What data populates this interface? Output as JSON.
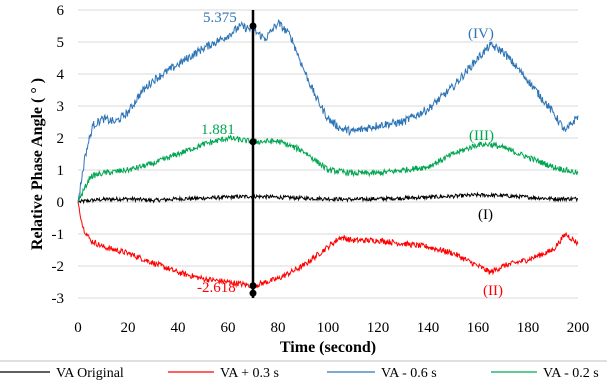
{
  "chart_data": {
    "type": "line",
    "title": "",
    "xlabel": "Time (second)",
    "ylabel": "Relative Phase Angle ( ° )",
    "xlim": [
      0,
      200
    ],
    "ylim": [
      -3,
      6
    ],
    "xticks": [
      0,
      20,
      40,
      60,
      80,
      100,
      120,
      140,
      160,
      180,
      200
    ],
    "yticks": [
      -3,
      -2,
      -1,
      0,
      1,
      2,
      3,
      4,
      5,
      6
    ],
    "grid": "horizontal",
    "legend_position": "bottom",
    "series": [
      {
        "name": "VA Original",
        "color": "#000000",
        "label": "(I)",
        "x": [
          0,
          5,
          10,
          20,
          30,
          40,
          50,
          60,
          70,
          80,
          90,
          100,
          110,
          120,
          130,
          140,
          150,
          160,
          170,
          180,
          190,
          200
        ],
        "y": [
          0,
          0.05,
          0.08,
          0.1,
          0.05,
          0.1,
          0.12,
          0.15,
          0.18,
          0.15,
          0.12,
          0.1,
          0.08,
          0.1,
          0.12,
          0.15,
          0.18,
          0.22,
          0.2,
          0.15,
          0.1,
          0.1
        ]
      },
      {
        "name": "VA + 0.3 s",
        "color": "#ff0000",
        "label": "(II)",
        "x": [
          0,
          2,
          5,
          10,
          20,
          30,
          40,
          50,
          60,
          70,
          80,
          90,
          100,
          105,
          110,
          120,
          130,
          140,
          150,
          160,
          165,
          170,
          180,
          190,
          195,
          200
        ],
        "y": [
          0,
          -0.8,
          -1.2,
          -1.4,
          -1.6,
          -1.9,
          -2.2,
          -2.4,
          -2.5,
          -2.618,
          -2.4,
          -2.0,
          -1.4,
          -1.1,
          -1.2,
          -1.2,
          -1.3,
          -1.4,
          -1.6,
          -2.0,
          -2.2,
          -2.0,
          -1.8,
          -1.5,
          -1.0,
          -1.3
        ]
      },
      {
        "name": "VA - 0.6 s",
        "color": "#2e75b6",
        "label": "(IV)",
        "x": [
          0,
          3,
          6,
          10,
          15,
          20,
          25,
          30,
          40,
          50,
          60,
          65,
          70,
          75,
          80,
          85,
          90,
          95,
          100,
          105,
          110,
          120,
          130,
          140,
          150,
          160,
          165,
          170,
          180,
          190,
          195,
          200
        ],
        "y": [
          0,
          1.5,
          2.4,
          2.6,
          2.5,
          2.8,
          3.4,
          3.8,
          4.3,
          4.8,
          5.2,
          5.5,
          5.375,
          5.1,
          5.6,
          5.2,
          4.2,
          3.3,
          2.6,
          2.3,
          2.2,
          2.4,
          2.5,
          2.9,
          3.6,
          4.5,
          4.9,
          4.7,
          3.8,
          2.8,
          2.2,
          2.7
        ]
      },
      {
        "name": "VA - 0.2 s",
        "color": "#00a651",
        "label": "(III)",
        "x": [
          0,
          5,
          10,
          20,
          30,
          40,
          50,
          60,
          70,
          80,
          90,
          100,
          110,
          120,
          130,
          140,
          150,
          160,
          165,
          170,
          180,
          190,
          200
        ],
        "y": [
          0,
          0.8,
          0.9,
          1.0,
          1.2,
          1.5,
          1.8,
          2.0,
          1.881,
          1.9,
          1.6,
          1.0,
          0.9,
          0.9,
          1.0,
          1.1,
          1.5,
          1.8,
          1.8,
          1.7,
          1.4,
          1.1,
          0.9
        ]
      }
    ],
    "vertical_marker": {
      "x": 70
    },
    "annotations": [
      {
        "text": "5.375",
        "x": 70,
        "y": 5.375,
        "color": "#2e75b6"
      },
      {
        "text": "1.881",
        "x": 70,
        "y": 1.881,
        "color": "#00a651"
      },
      {
        "text": "-2.618",
        "x": 70,
        "y": -2.618,
        "color": "#ff0000"
      }
    ]
  }
}
